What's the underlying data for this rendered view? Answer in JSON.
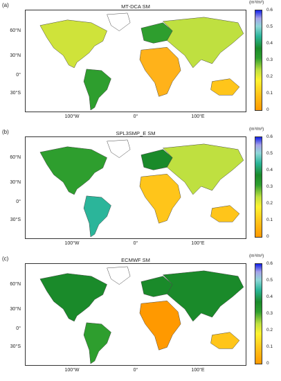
{
  "panels": [
    {
      "letter": "(a)",
      "title": "MT-DCA SM"
    },
    {
      "letter": "(b)",
      "title": "SPL3SMP_E SM"
    },
    {
      "letter": "(c)",
      "title": "ECMWF SM"
    }
  ],
  "lat_labels": [
    "60°N",
    "30°N",
    "0°",
    "30°S"
  ],
  "lon_labels": [
    "100°W",
    "0°",
    "100°E"
  ],
  "colorbar": {
    "unit": "(m³/m³)",
    "ticks": [
      "0.6",
      "0.5",
      "0.4",
      "0.3",
      "0.2",
      "0.1",
      "0"
    ],
    "colors": [
      "#ff9900",
      "#ffc51a",
      "#fff230",
      "#bfe040",
      "#2e9e2e",
      "#1a8a2a",
      "#2bb59a",
      "#8fd6d8",
      "#a6a2e8",
      "#1020e8"
    ]
  },
  "region_colors": {
    "a": {
      "north_america": "#cfe33a",
      "south_america": "#2e9e2e",
      "africa": "#ffb21a",
      "eurasia": "#bfe040",
      "europe": "#2e9e2e",
      "australia": "#ffc51a",
      "greenland": "#ffffff"
    },
    "b": {
      "north_america": "#2e9e2e",
      "south_america": "#2bb59a",
      "africa": "#ffc51a",
      "eurasia": "#bfe040",
      "europe": "#1a8a2a",
      "australia": "#ffc51a",
      "greenland": "#ffffff"
    },
    "c": {
      "north_america": "#1a8a2a",
      "south_america": "#2e9e2e",
      "africa": "#ff9900",
      "eurasia": "#1a8a2a",
      "europe": "#1a8a2a",
      "australia": "#ffc51a",
      "greenland": "#ffffff"
    }
  }
}
